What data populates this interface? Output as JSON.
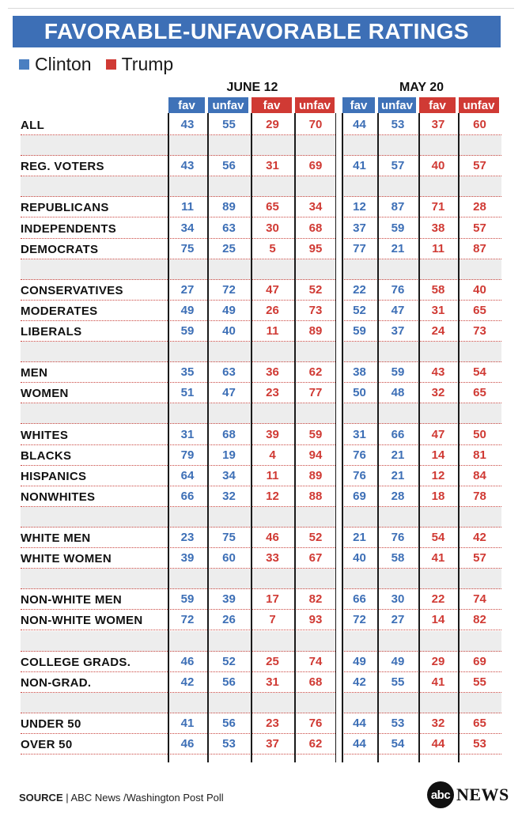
{
  "title": "FAVORABLE-UNFAVORABLE RATINGS",
  "legend": [
    {
      "name": "Clinton",
      "color": "#4a7fc1"
    },
    {
      "name": "Trump",
      "color": "#d03a34"
    }
  ],
  "colors": {
    "clinton": "#3d6fb6",
    "trump": "#d03a34",
    "header_clinton": "#3f72b8",
    "header_trump": "#d03a34"
  },
  "periods": [
    "JUNE 12",
    "MAY 20"
  ],
  "column_headers": [
    "fav",
    "unfav",
    "fav",
    "unfav",
    "fav",
    "unfav",
    "fav",
    "unfav"
  ],
  "footer": {
    "source_label": "SOURCE",
    "source_text": " | ABC News /Washington Post Poll"
  },
  "logo": {
    "circle_text": "abc",
    "word": "NEWS"
  },
  "chart_data": {
    "type": "table",
    "title": "FAVORABLE-UNFAVORABLE RATINGS",
    "series": [
      "Clinton",
      "Trump"
    ],
    "periods": [
      "JUNE 12",
      "MAY 20"
    ],
    "columns": [
      "fav",
      "unfav",
      "fav",
      "unfav",
      "fav",
      "unfav",
      "fav",
      "unfav"
    ],
    "rows": [
      {
        "label": "ALL",
        "values": [
          43,
          55,
          29,
          70,
          44,
          53,
          37,
          60
        ]
      },
      {
        "label": "",
        "values": []
      },
      {
        "label": "REG. VOTERS",
        "values": [
          43,
          56,
          31,
          69,
          41,
          57,
          40,
          57
        ]
      },
      {
        "label": "",
        "values": []
      },
      {
        "label": "REPUBLICANS",
        "values": [
          11,
          89,
          65,
          34,
          12,
          87,
          71,
          28
        ]
      },
      {
        "label": "INDEPENDENTS",
        "values": [
          34,
          63,
          30,
          68,
          37,
          59,
          38,
          57
        ]
      },
      {
        "label": "DEMOCRATS",
        "values": [
          75,
          25,
          5,
          95,
          77,
          21,
          11,
          87
        ]
      },
      {
        "label": "",
        "values": []
      },
      {
        "label": "CONSERVATIVES",
        "values": [
          27,
          72,
          47,
          52,
          22,
          76,
          58,
          40
        ]
      },
      {
        "label": "MODERATES",
        "values": [
          49,
          49,
          26,
          73,
          52,
          47,
          31,
          65
        ]
      },
      {
        "label": "LIBERALS",
        "values": [
          59,
          40,
          11,
          89,
          59,
          37,
          24,
          73
        ]
      },
      {
        "label": "",
        "values": []
      },
      {
        "label": "MEN",
        "values": [
          35,
          63,
          36,
          62,
          38,
          59,
          43,
          54
        ]
      },
      {
        "label": "WOMEN",
        "values": [
          51,
          47,
          23,
          77,
          50,
          48,
          32,
          65
        ]
      },
      {
        "label": "",
        "values": []
      },
      {
        "label": "WHITES",
        "values": [
          31,
          68,
          39,
          59,
          31,
          66,
          47,
          50
        ]
      },
      {
        "label": "BLACKS",
        "values": [
          79,
          19,
          4,
          94,
          76,
          21,
          14,
          81
        ]
      },
      {
        "label": "HISPANICS",
        "values": [
          64,
          34,
          11,
          89,
          76,
          21,
          12,
          84
        ]
      },
      {
        "label": "NONWHITES",
        "values": [
          66,
          32,
          12,
          88,
          69,
          28,
          18,
          78
        ]
      },
      {
        "label": "",
        "values": []
      },
      {
        "label": "WHITE MEN",
        "values": [
          23,
          75,
          46,
          52,
          21,
          76,
          54,
          42
        ]
      },
      {
        "label": "WHITE WOMEN",
        "values": [
          39,
          60,
          33,
          67,
          40,
          58,
          41,
          57
        ]
      },
      {
        "label": "",
        "values": []
      },
      {
        "label": "NON-WHITE MEN",
        "values": [
          59,
          39,
          17,
          82,
          66,
          30,
          22,
          74
        ]
      },
      {
        "label": "NON-WHITE WOMEN",
        "values": [
          72,
          26,
          7,
          93,
          72,
          27,
          14,
          82
        ]
      },
      {
        "label": "",
        "values": []
      },
      {
        "label": "COLLEGE GRADS.",
        "values": [
          46,
          52,
          25,
          74,
          49,
          49,
          29,
          69
        ]
      },
      {
        "label": "NON-GRAD.",
        "values": [
          42,
          56,
          31,
          68,
          42,
          55,
          41,
          55
        ]
      },
      {
        "label": "",
        "values": []
      },
      {
        "label": "UNDER 50",
        "values": [
          41,
          56,
          23,
          76,
          44,
          53,
          32,
          65
        ]
      },
      {
        "label": "OVER 50",
        "values": [
          46,
          53,
          37,
          62,
          44,
          54,
          44,
          53
        ]
      }
    ]
  }
}
